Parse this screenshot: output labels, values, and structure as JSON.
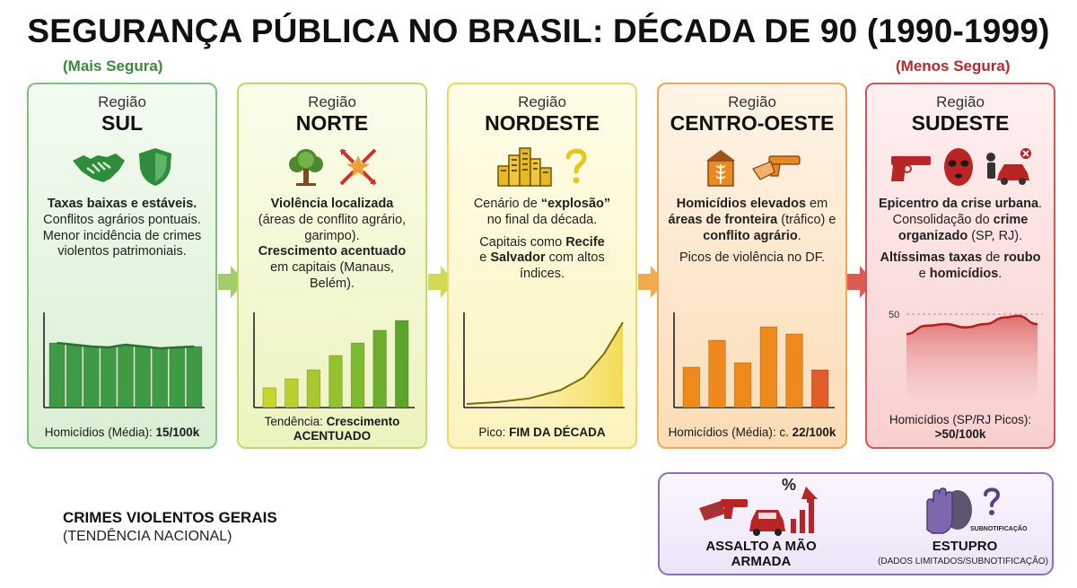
{
  "title": "SEGURANÇA PÚBLICA NO BRASIL: DÉCADA DE 90 (1990-1999)",
  "tag_safe": "(Mais Segura)",
  "tag_unsafe": "(Menos Segura)",
  "region_word": "Região",
  "regions": [
    {
      "name": "SUL",
      "desc": [
        "Taxas baixas e estáveis.",
        "Conflitos agrários pontuais.",
        "Menor incidência de crimes violentos patrimoniais."
      ],
      "foot_a": "Homicídios (Média): ",
      "foot_b": "15/100k",
      "icons": [
        "handshake-icon",
        "shield-icon"
      ]
    },
    {
      "name": "NORTE",
      "desc_a": "Violência localizada",
      "desc_b": "(áreas de conflito agrário, garimpo).",
      "desc_c": "Crescimento acentuado",
      "desc_d": "em capitais (Manaus, Belém).",
      "foot_a": "Tendência: ",
      "foot_b": "Crescimento",
      "foot_c": "ACENTUADO",
      "icons": [
        "tree-icon",
        "conflict-icon"
      ]
    },
    {
      "name": "NORDESTE",
      "desc_a": "Cenário de ",
      "desc_b": "“explosão”",
      "desc_c": "no final da década.",
      "desc_d": "Capitais como ",
      "desc_e": "Recife",
      "desc_f": "e ",
      "desc_g": "Salvador",
      "desc_h": " com altos índices.",
      "foot_a": "Pico: ",
      "foot_b": "FIM DA DÉCADA",
      "icons": [
        "city-icon",
        "question-icon"
      ]
    },
    {
      "name": "CENTRO-OESTE",
      "desc_a": "Homicídios elevados",
      "desc_b": " em ",
      "desc_c": "áreas de fronteira",
      "desc_d": " (tráfico) e ",
      "desc_e": "conflito agrário",
      "desc_f": ".",
      "desc_g": "Picos de violência no DF.",
      "foot_a": "Homicídios (Média): c. ",
      "foot_b": "22/100k",
      "icons": [
        "silo-icon",
        "gun-icon"
      ]
    },
    {
      "name": "SUDESTE",
      "desc_a": "Epicentro da crise urbana",
      "desc_b": ".",
      "desc_c": "Consolidação do ",
      "desc_d": "crime organizado",
      "desc_e": " (SP, RJ).",
      "desc_f": "Altíssimas taxas",
      "desc_g": " de ",
      "desc_h": "roubo",
      "desc_i": " e ",
      "desc_j": "homicídios",
      "desc_k": ".",
      "foot_a": "Homicídios (SP/RJ Picos):",
      "foot_b": ">50/100k",
      "chart_tick": "50",
      "icons": [
        "pistol-icon",
        "mask-icon",
        "car-robbery-icon"
      ]
    }
  ],
  "general": {
    "line1": "CRIMES VIOLENTOS GERAIS",
    "line2": "(TENDÊNCIA NACIONAL)"
  },
  "crimes": {
    "armed_robbery": "ASSALTO A MÃO ARMADA",
    "rape": "ESTUPRO",
    "rape_note": "(DADOS LIMITADOS/SUBNOTIFICAÇÃO)",
    "underreport_tag": "SUBNOTIFICAÇÃO",
    "percent_symbol": "%"
  },
  "colors": {
    "green": "#3f9a45",
    "lime": "#b5c92f",
    "yellow": "#e7c51d",
    "orange": "#ee8a1c",
    "red": "#c62828",
    "purple": "#8f6fc0"
  },
  "chart_data": [
    {
      "type": "bar",
      "region": "SUL",
      "values": [
        0.72,
        0.7,
        0.68,
        0.67,
        0.7,
        0.68,
        0.66,
        0.67,
        0.68
      ],
      "title": "",
      "xlabel": "",
      "ylabel": ""
    },
    {
      "type": "bar",
      "region": "NORTE",
      "values": [
        0.22,
        0.32,
        0.42,
        0.58,
        0.72,
        0.86,
        0.97
      ],
      "title": "",
      "xlabel": "",
      "ylabel": ""
    },
    {
      "type": "area",
      "region": "NORDESTE",
      "x": [
        0,
        0.2,
        0.4,
        0.6,
        0.75,
        0.88,
        1.0
      ],
      "y": [
        0.03,
        0.05,
        0.09,
        0.18,
        0.32,
        0.58,
        0.92
      ],
      "title": "",
      "xlabel": "",
      "ylabel": ""
    },
    {
      "type": "bar",
      "region": "CENTRO-OESTE",
      "values": [
        0.45,
        0.75,
        0.5,
        0.9,
        0.82,
        0.42
      ],
      "title": "",
      "xlabel": "",
      "ylabel": ""
    },
    {
      "type": "area",
      "region": "SUDESTE",
      "x": [
        0,
        0.15,
        0.3,
        0.45,
        0.6,
        0.75,
        0.85,
        1.0
      ],
      "y": [
        38,
        43,
        44,
        42,
        44,
        48,
        49,
        44
      ],
      "ylim": [
        0,
        50
      ],
      "yticks": [
        50
      ],
      "title": "",
      "xlabel": "",
      "ylabel": ""
    }
  ]
}
